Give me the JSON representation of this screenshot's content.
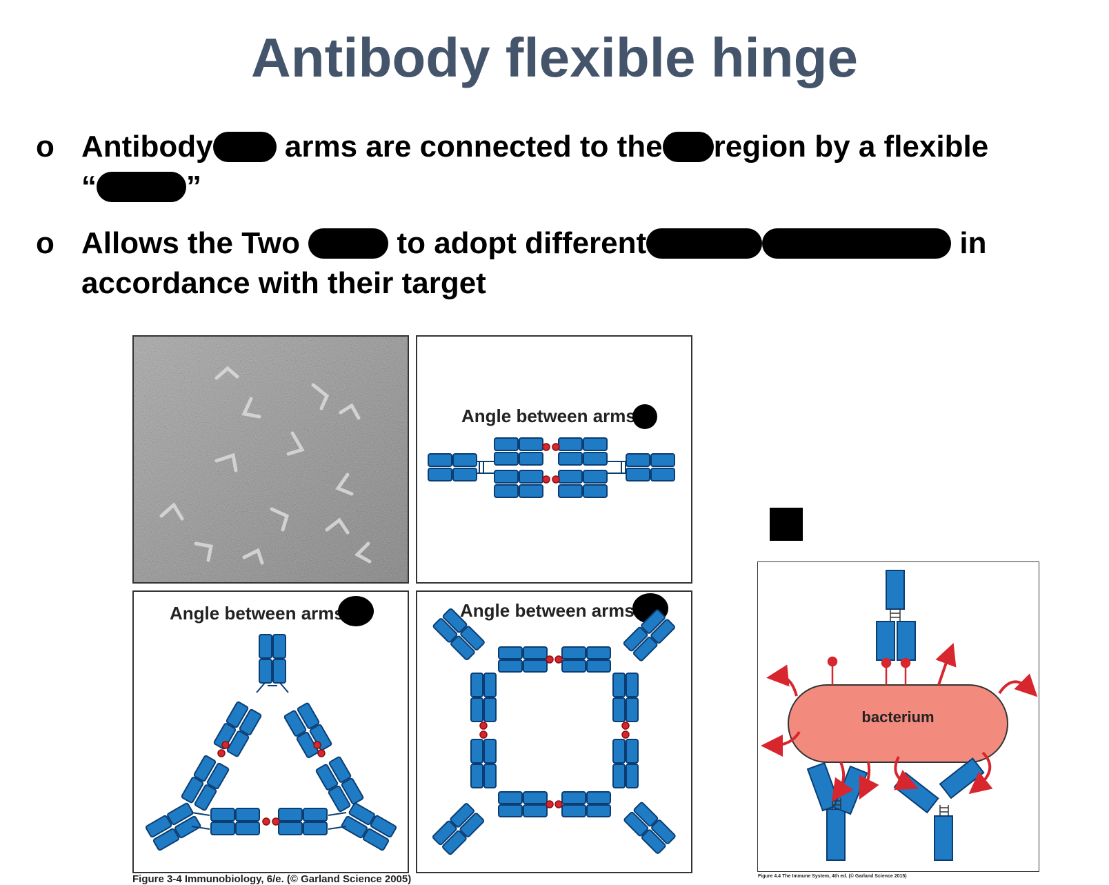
{
  "slide": {
    "title": "Antibody flexible hinge",
    "bullets": [
      {
        "marker": "o",
        "segments": [
          "Antibody",
          "arms are connected to the",
          "region by a flexible",
          "“",
          "”"
        ]
      },
      {
        "marker": "o",
        "segments": [
          "Allows the Two",
          "to adopt different",
          "in",
          "accordance with their target"
        ]
      }
    ]
  },
  "figure_left": {
    "panel_b_label": "Angle between arms is",
    "panel_c_label": "Angle between arms is",
    "panel_d_label": "Angle between arms is",
    "caption": "Figure 3-4  Immunobiology, 6/e. (© Garland Science 2005)"
  },
  "figure_right": {
    "bacterium_label": "bacterium",
    "caption": "Figure 4.4 The Immune System, 4th ed. (© Garland Science 2015)"
  },
  "colors": {
    "title": "#44546a",
    "domain_blue": "#1e7bc4",
    "domain_outline": "#0b3d73",
    "disulfide_red": "#d7262e",
    "bacterium_fill": "#f28b7d"
  }
}
